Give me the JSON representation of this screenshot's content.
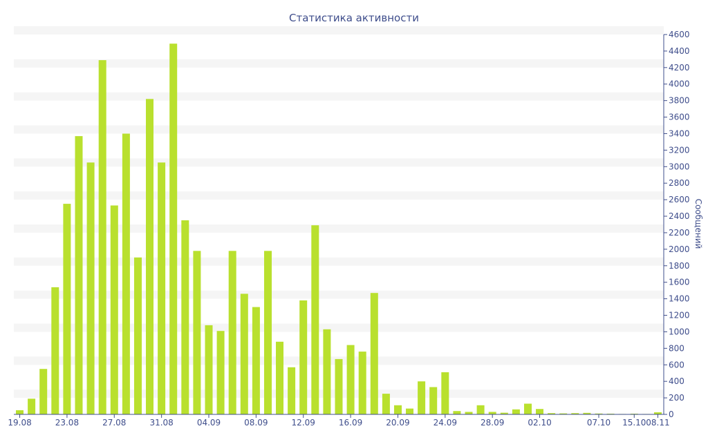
{
  "chart_data": {
    "type": "bar",
    "title": "Статистика активности",
    "xlabel": "",
    "ylabel": "Сообщений",
    "ylim": [
      0,
      4600
    ],
    "y_ticks": [
      0,
      200,
      400,
      600,
      800,
      1000,
      1200,
      1400,
      1600,
      1800,
      2000,
      2200,
      2400,
      2600,
      2800,
      3000,
      3200,
      3400,
      3600,
      3800,
      4000,
      4200,
      4400,
      4600
    ],
    "y_axis_side": "right",
    "grid": "alternating horizontal bands",
    "x_tick_labels": [
      "19.08",
      "23.08",
      "27.08",
      "31.08",
      "04.09",
      "08.09",
      "12.09",
      "16.09",
      "20.09",
      "24.09",
      "28.09",
      "02.10",
      "07.10",
      "15.10",
      "08.11"
    ],
    "categories": [
      "19.08",
      "20.08",
      "21.08",
      "22.08",
      "23.08",
      "24.08",
      "25.08",
      "26.08",
      "27.08",
      "28.08",
      "29.08",
      "30.08",
      "31.08",
      "01.09",
      "02.09",
      "03.09",
      "04.09",
      "05.09",
      "06.09",
      "07.09",
      "08.09",
      "09.09",
      "10.09",
      "11.09",
      "12.09",
      "13.09",
      "14.09",
      "15.09",
      "16.09",
      "17.09",
      "18.09",
      "19.09",
      "20.09",
      "21.09",
      "22.09",
      "23.09",
      "24.09",
      "25.09",
      "26.09",
      "27.09",
      "28.09",
      "29.09",
      "30.09",
      "01.10",
      "02.10",
      "03.10",
      "04.10",
      "05.10",
      "06.10",
      "07.10",
      "08.10",
      "10.10",
      "15.10",
      "20.10",
      "08.11"
    ],
    "values": [
      50,
      190,
      550,
      1540,
      2550,
      3370,
      3050,
      4290,
      2530,
      3400,
      1900,
      3820,
      3050,
      4490,
      2350,
      1980,
      1080,
      1010,
      1980,
      1460,
      1300,
      1980,
      880,
      570,
      1380,
      2290,
      1030,
      670,
      840,
      760,
      1470,
      250,
      110,
      70,
      400,
      330,
      510,
      40,
      30,
      110,
      30,
      20,
      60,
      130,
      65,
      15,
      12,
      15,
      18,
      10,
      8,
      5,
      8,
      5,
      25
    ],
    "bar_color": "#b9e02e",
    "text_color": "#3e4d8b"
  }
}
